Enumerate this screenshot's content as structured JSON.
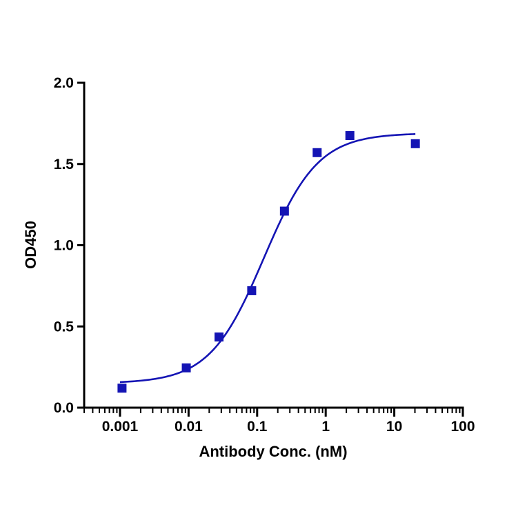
{
  "chart_data": {
    "type": "scatter",
    "title": "",
    "xlabel": "Antibody Conc. (nM)",
    "ylabel": "OD450",
    "xscale": "log",
    "xlim": [
      0.0003,
      100
    ],
    "ylim": [
      0,
      2.0
    ],
    "x_ticks": [
      0.001,
      0.01,
      0.1,
      1,
      10,
      100
    ],
    "x_tick_labels": [
      "0.001",
      "0.01",
      "0.1",
      "1",
      "10",
      "100"
    ],
    "y_ticks": [
      0,
      0.5,
      1.0,
      1.5,
      2.0
    ],
    "y_tick_labels": [
      "0.0",
      "0.5",
      "1.0",
      "1.5",
      "2.0"
    ],
    "grid": false,
    "legend": "none",
    "series": [
      {
        "marker": "square",
        "color": "#1414b4",
        "x": [
          0.00107,
          0.00926,
          0.0278,
          0.0833,
          0.25,
          0.75,
          2.25,
          20.3
        ],
        "y": [
          0.12,
          0.245,
          0.435,
          0.72,
          1.21,
          1.57,
          1.675,
          1.625
        ],
        "fit": {
          "model": "4PL",
          "bottom": 0.15,
          "top": 1.69,
          "ec50": 0.125,
          "hill": 1.1,
          "x_range": [
            0.001,
            20.3
          ]
        }
      }
    ]
  }
}
